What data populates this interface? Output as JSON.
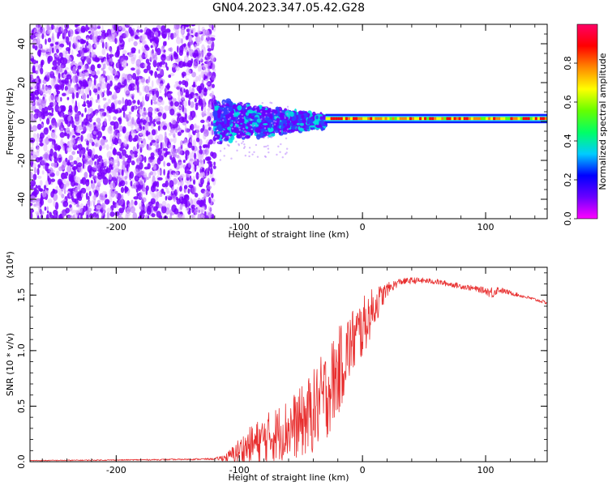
{
  "figure_title": "GN04.2023.347.05.42.G28",
  "chart_data": [
    {
      "type": "heatmap",
      "title": "",
      "xlabel": "Height of straight line (km)",
      "ylabel": "Frequency (Hz)",
      "xlim": [
        -270,
        150
      ],
      "ylim": [
        -50,
        50
      ],
      "x_ticks": [
        -200,
        -100,
        0,
        100
      ],
      "y_ticks": [
        -40,
        -20,
        0,
        20,
        40
      ],
      "colorbar": {
        "label": "Normalized spectral amplitude",
        "range": [
          0.0,
          1.0
        ],
        "ticks": [
          "0.0",
          "0.2",
          "0.4",
          "0.6",
          "0.8"
        ],
        "colors": [
          "#ff00ff",
          "#6a00ff",
          "#0000ff",
          "#00ccff",
          "#00ff66",
          "#66ff00",
          "#ffff00",
          "#ff8800",
          "#ff0000",
          "#ff0066"
        ]
      },
      "regions": [
        {
          "x_range": [
            -270,
            -120
          ],
          "freq_range": [
            -50,
            50
          ],
          "amplitude": "low, broadband noise"
        },
        {
          "x_range": [
            -120,
            -30
          ],
          "freq_center": 0,
          "freq_halfwidth_range": [
            10,
            3
          ],
          "amplitude_range": [
            0.2,
            0.4
          ]
        },
        {
          "x_range": [
            -30,
            150
          ],
          "freq_center": 1.5,
          "freq_halfwidth": 1.5,
          "amplitude_range": [
            0.6,
            0.9
          ]
        }
      ]
    },
    {
      "type": "line",
      "title": "",
      "xlabel": "Height of straight line (km)",
      "ylabel": "SNR (10 * v/v)",
      "y_multiplier": "(x10⁴)",
      "xlim": [
        -270,
        150
      ],
      "ylim": [
        0.0,
        1.75
      ],
      "x_ticks": [
        -200,
        -100,
        0,
        100
      ],
      "y_ticks": [
        "0.0",
        "0.5",
        "1.0",
        "1.5"
      ],
      "color": "#e83030",
      "series": [
        {
          "x": [
            -270,
            -200,
            -150,
            -120,
            -110,
            -100,
            -90,
            -80,
            -70,
            -60,
            -50,
            -40,
            -30,
            -20,
            -10,
            0,
            10,
            20,
            30,
            40,
            50,
            60,
            70,
            80,
            90,
            100,
            105,
            110,
            120,
            130,
            140,
            150
          ],
          "y": [
            0.01,
            0.015,
            0.02,
            0.025,
            0.04,
            0.1,
            0.15,
            0.2,
            0.25,
            0.3,
            0.35,
            0.45,
            0.6,
            0.8,
            1.05,
            1.2,
            1.4,
            1.55,
            1.62,
            1.63,
            1.63,
            1.62,
            1.6,
            1.58,
            1.56,
            1.54,
            1.52,
            1.55,
            1.52,
            1.49,
            1.46,
            1.43
          ],
          "noise_amplitude": [
            0.004,
            0.005,
            0.006,
            0.008,
            0.04,
            0.12,
            0.18,
            0.22,
            0.25,
            0.28,
            0.32,
            0.38,
            0.42,
            0.4,
            0.32,
            0.28,
            0.18,
            0.06,
            0.03,
            0.03,
            0.025,
            0.025,
            0.025,
            0.025,
            0.025,
            0.03,
            0.06,
            0.03,
            0.02,
            0.015,
            0.015,
            0.015
          ]
        }
      ]
    }
  ]
}
